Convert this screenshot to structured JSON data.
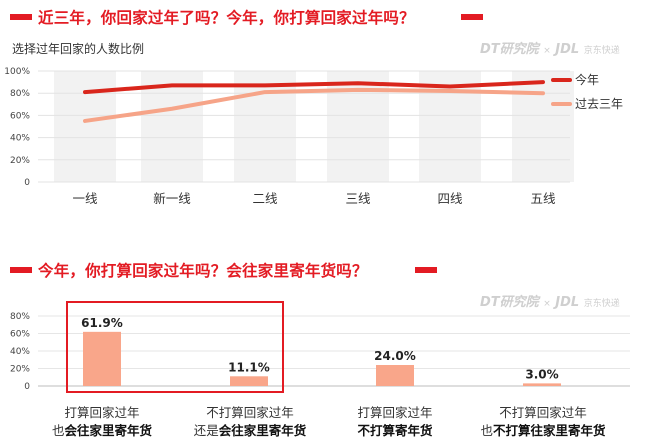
{
  "colors": {
    "accent": "#e31b23",
    "line_this_year": "#d9261c",
    "line_past": "#f6a488",
    "bar": "#f9a68a",
    "band": "#f2f2f2",
    "highlight_box": "#e31b23"
  },
  "top": {
    "title": "近三年，你回家过年了吗？今年，你打算回家过年吗？",
    "subtitle": "选择过年回家的人数比例",
    "watermark": {
      "dt": "DT研究院",
      "x": "×",
      "jdl": "JDL",
      "jdl_sub": "京东快递"
    }
  },
  "bottom": {
    "title": "今年，你打算回家过年吗？会往家里寄年货吗？",
    "watermark": {
      "dt": "DT研究院",
      "x": "×",
      "jdl": "JDL",
      "jdl_sub": "京东快递"
    },
    "categories": [
      {
        "line1": "打算回家过年",
        "line2_plain": "也",
        "line2_bold": "会往家里寄年货"
      },
      {
        "line1": "不打算回家过年",
        "line2_plain": "还是",
        "line2_bold": "会往家里寄年货"
      },
      {
        "line1": "打算回家过年",
        "line2_plain": "",
        "line2_bold": "不打算寄年货"
      },
      {
        "line1": "不打算回家过年",
        "line2_plain": "也",
        "line2_bold": "不打算往家里寄年货"
      }
    ]
  },
  "chart_data": [
    {
      "type": "line",
      "title": "近三年，你回家过年了吗？今年，你打算回家过年吗？",
      "subtitle": "选择过年回家的人数比例",
      "categories": [
        "一线",
        "新一线",
        "二线",
        "三线",
        "四线",
        "五线"
      ],
      "yticks": [
        "100%",
        "80%",
        "60%",
        "40%",
        "20%",
        "0"
      ],
      "ylim": [
        0,
        100
      ],
      "legend_position": "right",
      "series": [
        {
          "name": "今年",
          "values": [
            81,
            87,
            87,
            89,
            86,
            90
          ]
        },
        {
          "name": "过去三年",
          "values": [
            55,
            66,
            81,
            83,
            82,
            80
          ]
        }
      ]
    },
    {
      "type": "bar",
      "title": "今年，你打算回家过年吗？会往家里寄年货吗？",
      "categories": [
        "打算回家过年 也会往家里寄年货",
        "不打算回家过年 还是会往家里寄年货",
        "打算回家过年 不打算寄年货",
        "不打算回家过年 也不打算往家里寄年货"
      ],
      "values": [
        61.9,
        11.1,
        24.0,
        3.0
      ],
      "value_labels": [
        "61.9%",
        "11.1%",
        "24.0%",
        "3.0%"
      ],
      "yticks": [
        "80%",
        "60%",
        "40%",
        "20%",
        "0"
      ],
      "ylim": [
        0,
        80
      ]
    }
  ]
}
